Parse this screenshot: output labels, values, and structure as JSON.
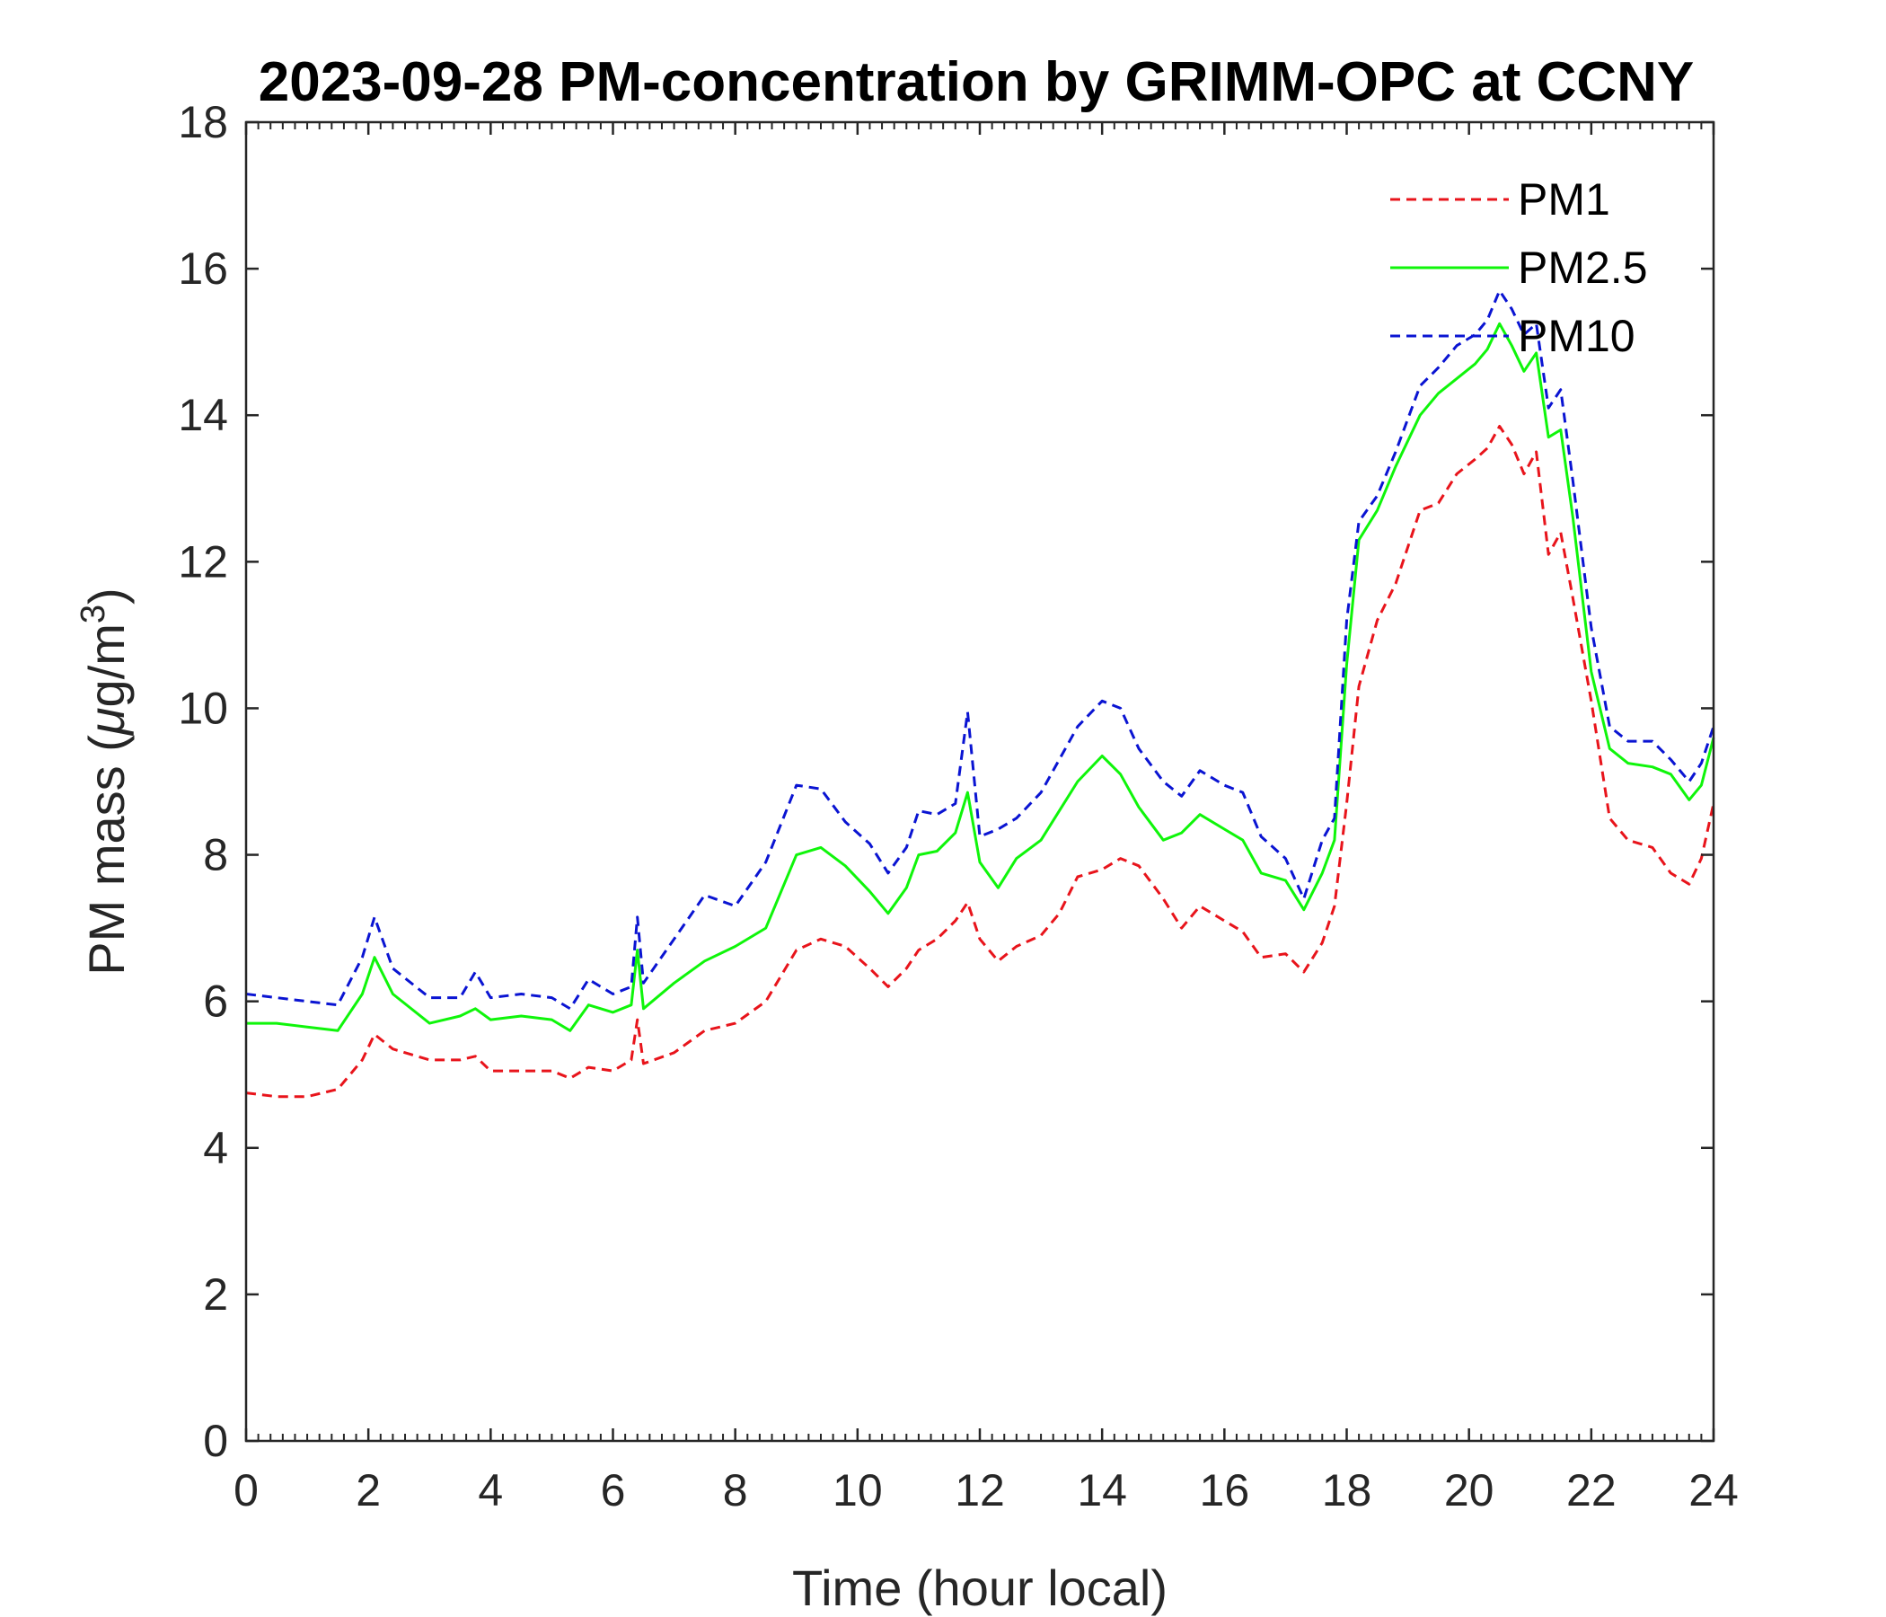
{
  "chart_data": {
    "type": "line",
    "title": "2023-09-28 PM-concentration by GRIMM-OPC at CCNY",
    "xlabel": "Time (hour local)",
    "ylabel_prefix": "PM mass (",
    "ylabel_mu": "μ",
    "ylabel_unit": "g/m",
    "ylabel_sup": "3",
    "ylabel_suffix": ")",
    "xlim": [
      0,
      24
    ],
    "ylim": [
      0,
      18
    ],
    "xticks": [
      "0",
      "2",
      "4",
      "6",
      "8",
      "10",
      "12",
      "14",
      "16",
      "18",
      "20",
      "22",
      "24"
    ],
    "yticks": [
      "0",
      "2",
      "4",
      "6",
      "8",
      "10",
      "12",
      "14",
      "16",
      "18"
    ],
    "legend_position": "top-right",
    "grid": false,
    "x": [
      0,
      0.5,
      1,
      1.5,
      1.9,
      2.1,
      2.4,
      3,
      3.5,
      3.75,
      4,
      4.5,
      5,
      5.3,
      5.6,
      6,
      6.3,
      6.4,
      6.5,
      7,
      7.5,
      8,
      8.5,
      9,
      9.4,
      9.8,
      10.2,
      10.5,
      10.8,
      11,
      11.3,
      11.6,
      11.8,
      12,
      12.3,
      12.6,
      13,
      13.3,
      13.6,
      14,
      14.3,
      14.6,
      15,
      15.3,
      15.6,
      16,
      16.3,
      16.6,
      17,
      17.3,
      17.6,
      17.8,
      18,
      18.2,
      18.5,
      18.8,
      19.2,
      19.5,
      19.8,
      20.1,
      20.3,
      20.5,
      20.7,
      20.9,
      21.1,
      21.3,
      21.5,
      21.7,
      22,
      22.3,
      22.6,
      23,
      23.3,
      23.6,
      23.8,
      24
    ],
    "series": [
      {
        "name": "PM1",
        "color": "#e8141b",
        "style": "dashed",
        "values": [
          4.75,
          4.7,
          4.7,
          4.8,
          5.2,
          5.55,
          5.35,
          5.2,
          5.2,
          5.25,
          5.05,
          5.05,
          5.05,
          4.95,
          5.1,
          5.05,
          5.2,
          5.75,
          5.15,
          5.3,
          5.6,
          5.7,
          6.0,
          6.7,
          6.85,
          6.75,
          6.45,
          6.2,
          6.45,
          6.7,
          6.85,
          7.1,
          7.35,
          6.85,
          6.55,
          6.75,
          6.9,
          7.2,
          7.7,
          7.8,
          7.95,
          7.85,
          7.4,
          7.0,
          7.3,
          7.1,
          6.95,
          6.6,
          6.65,
          6.4,
          6.8,
          7.3,
          8.7,
          10.3,
          11.2,
          11.7,
          12.7,
          12.8,
          13.2,
          13.4,
          13.55,
          13.85,
          13.6,
          13.2,
          13.5,
          12.1,
          12.4,
          11.5,
          10.1,
          8.5,
          8.2,
          8.1,
          7.75,
          7.6,
          7.95,
          8.7
        ]
      },
      {
        "name": "PM2.5",
        "color": "#0ff50a",
        "style": "solid",
        "values": [
          5.7,
          5.7,
          5.65,
          5.6,
          6.1,
          6.6,
          6.1,
          5.7,
          5.8,
          5.9,
          5.75,
          5.8,
          5.75,
          5.6,
          5.95,
          5.85,
          5.95,
          6.7,
          5.9,
          6.25,
          6.55,
          6.75,
          7.0,
          8.0,
          8.1,
          7.85,
          7.5,
          7.2,
          7.55,
          8.0,
          8.05,
          8.3,
          8.85,
          7.9,
          7.55,
          7.95,
          8.2,
          8.6,
          9.0,
          9.35,
          9.1,
          8.65,
          8.2,
          8.3,
          8.55,
          8.35,
          8.2,
          7.75,
          7.65,
          7.25,
          7.75,
          8.2,
          10.6,
          12.3,
          12.7,
          13.3,
          14.0,
          14.3,
          14.5,
          14.7,
          14.9,
          15.25,
          14.95,
          14.6,
          14.85,
          13.7,
          13.8,
          12.6,
          10.5,
          9.45,
          9.25,
          9.2,
          9.1,
          8.75,
          8.95,
          9.6
        ]
      },
      {
        "name": "PM10",
        "color": "#0a14d2",
        "style": "dashed",
        "values": [
          6.1,
          6.05,
          6.0,
          5.95,
          6.6,
          7.15,
          6.45,
          6.05,
          6.05,
          6.4,
          6.05,
          6.1,
          6.05,
          5.9,
          6.3,
          6.1,
          6.2,
          7.15,
          6.25,
          6.85,
          7.45,
          7.3,
          7.9,
          8.95,
          8.9,
          8.45,
          8.15,
          7.75,
          8.1,
          8.6,
          8.55,
          8.7,
          9.95,
          8.25,
          8.35,
          8.5,
          8.85,
          9.3,
          9.75,
          10.1,
          10.0,
          9.45,
          9.0,
          8.8,
          9.15,
          8.95,
          8.85,
          8.25,
          7.95,
          7.4,
          8.2,
          8.5,
          11.2,
          12.55,
          12.9,
          13.5,
          14.4,
          14.65,
          14.95,
          15.1,
          15.3,
          15.7,
          15.45,
          15.1,
          15.25,
          14.1,
          14.35,
          13.1,
          11.1,
          9.75,
          9.55,
          9.55,
          9.3,
          9.0,
          9.25,
          9.75
        ]
      }
    ]
  }
}
